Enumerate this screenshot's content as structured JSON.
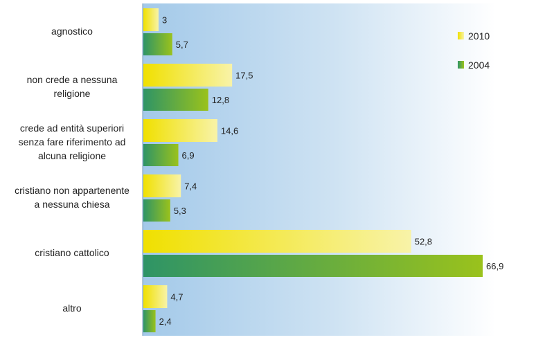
{
  "chart_data": {
    "type": "bar",
    "orientation": "horizontal",
    "categories": [
      "agnostico",
      "non crede a nessuna religione",
      "crede ad entità superiori senza fare riferimento ad alcuna religione",
      "cristiano non appartenente a nessuna chiesa",
      "cristiano cattolico",
      "altro"
    ],
    "category_lines": [
      [
        "agnostico"
      ],
      [
        "non crede a nessuna",
        "religione"
      ],
      [
        "crede ad entità superiori",
        "senza fare riferimento ad",
        "alcuna religione"
      ],
      [
        "cristiano non appartenente",
        "a nessuna chiesa"
      ],
      [
        "cristiano cattolico"
      ],
      [
        "altro"
      ]
    ],
    "series": [
      {
        "name": "2010",
        "values": [
          3,
          17.5,
          14.6,
          7.4,
          52.8,
          4.7
        ],
        "labels": [
          "3",
          "17,5",
          "14,6",
          "7,4",
          "52,8",
          "4,7"
        ],
        "colors": [
          "#f0e000",
          "#f8f3a8"
        ]
      },
      {
        "name": "2004",
        "values": [
          5.7,
          12.8,
          6.9,
          5.3,
          66.9,
          2.4
        ],
        "labels": [
          "5,7",
          "12,8",
          "6,9",
          "5,3",
          "66,9",
          "2,4"
        ],
        "colors": [
          "#2e9466",
          "#9ac21c"
        ]
      }
    ],
    "xlim": [
      0,
      70
    ],
    "grid": false,
    "axis_ticks_shown": false,
    "legend_position": "top-right",
    "background_gradient": [
      "#a3c9e9",
      "#ffffff"
    ]
  }
}
